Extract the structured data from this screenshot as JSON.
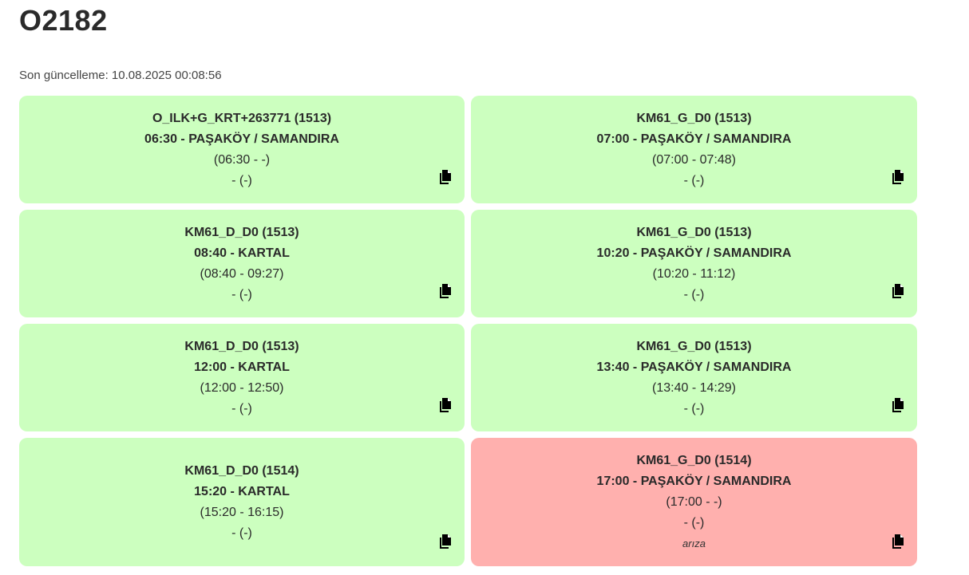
{
  "header": {
    "title": "O2182",
    "last_updated": "Son güncelleme: 10.08.2025 00:08:56"
  },
  "colors": {
    "ok": "#ccffbf",
    "fault": "#ffb0ae"
  },
  "cards": [
    {
      "code": "O_ILK+G_KRT+263771 (1513)",
      "departure": "06:30 - PAŞAKÖY / SAMANDIRA",
      "times": "(06:30 - -)",
      "extra": "- (-)",
      "note": "",
      "status": "ok",
      "icon": "copy-icon"
    },
    {
      "code": "KM61_G_D0 (1513)",
      "departure": "07:00 - PAŞAKÖY / SAMANDIRA",
      "times": "(07:00 - 07:48)",
      "extra": "- (-)",
      "note": "",
      "status": "ok",
      "icon": "copy-icon"
    },
    {
      "code": "KM61_D_D0 (1513)",
      "departure": "08:40 - KARTAL",
      "times": "(08:40 - 09:27)",
      "extra": "- (-)",
      "note": "",
      "status": "ok",
      "icon": "copy-icon"
    },
    {
      "code": "KM61_G_D0 (1513)",
      "departure": "10:20 - PAŞAKÖY / SAMANDIRA",
      "times": "(10:20 - 11:12)",
      "extra": "- (-)",
      "note": "",
      "status": "ok",
      "icon": "copy-icon"
    },
    {
      "code": "KM61_D_D0 (1513)",
      "departure": "12:00 - KARTAL",
      "times": "(12:00 - 12:50)",
      "extra": "- (-)",
      "note": "",
      "status": "ok",
      "icon": "copy-icon"
    },
    {
      "code": "KM61_G_D0 (1513)",
      "departure": "13:40 - PAŞAKÖY / SAMANDIRA",
      "times": "(13:40 - 14:29)",
      "extra": "- (-)",
      "note": "",
      "status": "ok",
      "icon": "copy-icon"
    },
    {
      "code": "KM61_D_D0 (1514)",
      "departure": "15:20 - KARTAL",
      "times": "(15:20 - 16:15)",
      "extra": "- (-)",
      "note": "",
      "status": "ok",
      "icon": "copy-icon"
    },
    {
      "code": "KM61_G_D0 (1514)",
      "departure": "17:00 - PAŞAKÖY / SAMANDIRA",
      "times": "(17:00 - -)",
      "extra": "- (-)",
      "note": "arıza",
      "status": "fault",
      "icon": "copy-icon"
    }
  ]
}
